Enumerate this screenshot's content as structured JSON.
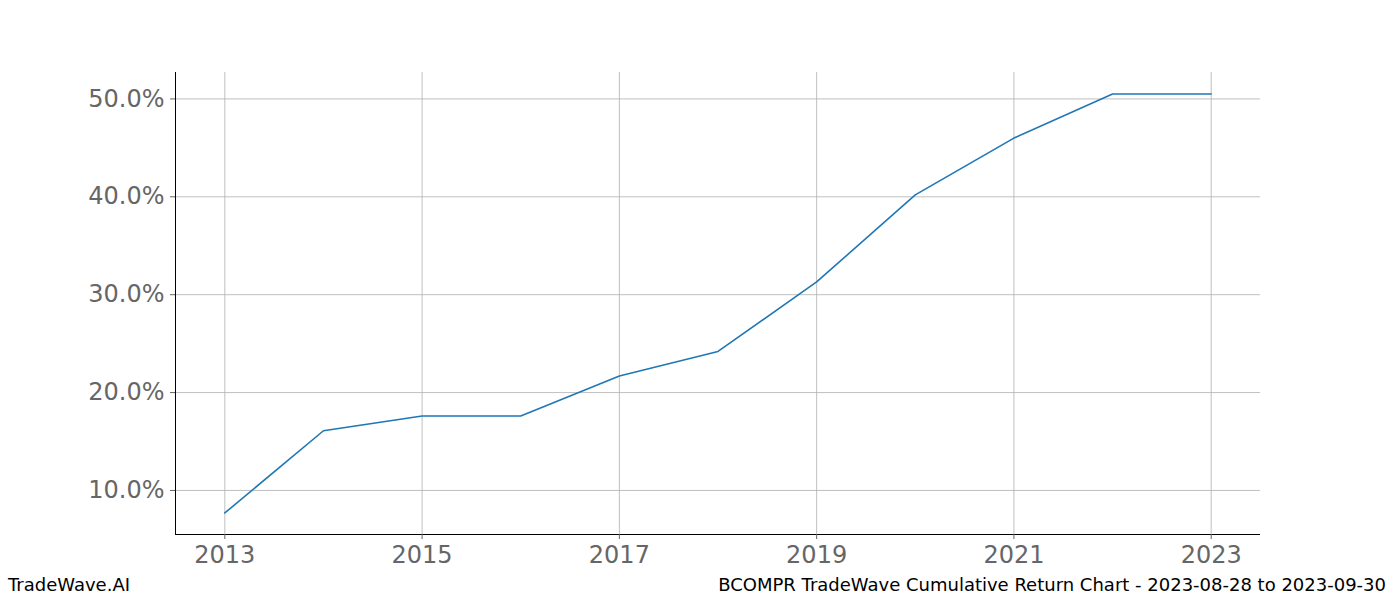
{
  "chart_data": {
    "type": "line",
    "title": "BCOMPR TradeWave Cumulative Return Chart - 2023-08-28 to 2023-09-30",
    "caption": "TradeWave.AI",
    "x": [
      2013,
      2014,
      2015,
      2016,
      2017,
      2018,
      2019,
      2020,
      2021,
      2022,
      2023
    ],
    "values": [
      7.7,
      16.1,
      17.6,
      17.6,
      21.7,
      24.2,
      31.3,
      40.2,
      46.0,
      50.5,
      50.5
    ],
    "color": "#1f77b4",
    "xlim": [
      2012.5,
      2023.5
    ],
    "xticks": [
      2013,
      2015,
      2017,
      2019,
      2021,
      2023
    ],
    "ylim": [
      5.5,
      52.7
    ],
    "yticks": [
      {
        "value": 10,
        "label": "10.0%"
      },
      {
        "value": 20,
        "label": "20.0%"
      },
      {
        "value": 30,
        "label": "30.0%"
      },
      {
        "value": 40,
        "label": "40.0%"
      },
      {
        "value": 50,
        "label": "50.0%"
      }
    ],
    "grid": true
  }
}
